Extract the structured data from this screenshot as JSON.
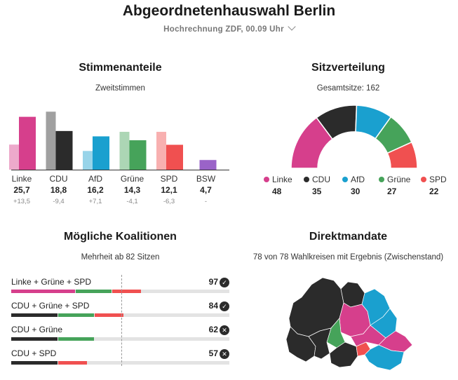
{
  "header": {
    "title": "Abgeordnetenhauswahl Berlin",
    "subtitle": "Hochrechnung ZDF, 00.09 Uhr"
  },
  "colors": {
    "Linke": "#d63f8c",
    "CDU": "#2b2b2b",
    "AfD": "#1aa0cf",
    "Grüne": "#46a35a",
    "SPD": "#f05050",
    "BSW": "#9a63c8"
  },
  "votes": {
    "title": "Stimmenanteile",
    "subtitle": "Zweitstimmen",
    "chart_data": {
      "type": "bar",
      "categories": [
        "Linke",
        "CDU",
        "AfD",
        "Grüne",
        "SPD",
        "BSW"
      ],
      "series": [
        {
          "values": [
            12.2,
            28.2,
            9.1,
            18.4,
            18.4,
            null
          ]
        },
        {
          "values": [
            25.7,
            18.8,
            16.2,
            14.3,
            12.1,
            4.7
          ]
        }
      ],
      "labels": [
        "25,7",
        "18,8",
        "16,2",
        "14,3",
        "12,1",
        "4,7"
      ],
      "changes": [
        "+13,5",
        "-9,4",
        "+7,1",
        "-4,1",
        "-6,3",
        "-"
      ],
      "ylim": [
        0,
        30
      ]
    }
  },
  "seats": {
    "title": "Sitzverteilung",
    "subtitle": "Gesamtsitze: 162",
    "chart_data": {
      "type": "pie",
      "categories": [
        "Linke",
        "CDU",
        "AfD",
        "Grüne",
        "SPD"
      ],
      "values": [
        48,
        35,
        30,
        27,
        22
      ],
      "labels": [
        "48",
        "35",
        "30",
        "27",
        "22"
      ]
    }
  },
  "coalitions": {
    "title": "Mögliche Koalitionen",
    "subtitle": "Mehrheit ab 82 Sitzen",
    "majority": 82,
    "total": 162,
    "items": [
      {
        "label": "Linke + Grüne + SPD",
        "seats": 97,
        "parties": [
          "Linke",
          "Grüne",
          "SPD"
        ],
        "status": "✓"
      },
      {
        "label": "CDU + Grüne + SPD",
        "seats": 84,
        "parties": [
          "CDU",
          "Grüne",
          "SPD"
        ],
        "status": "✓"
      },
      {
        "label": "CDU + Grüne",
        "seats": 62,
        "parties": [
          "CDU",
          "Grüne"
        ],
        "status": "✕"
      },
      {
        "label": "CDU + SPD",
        "seats": 57,
        "parties": [
          "CDU",
          "SPD"
        ],
        "status": "✕"
      }
    ]
  },
  "direct": {
    "title": "Direktmandate",
    "subtitle": "78 von 78 Wahlkreisen mit Ergebnis (Zwischenstand)"
  }
}
